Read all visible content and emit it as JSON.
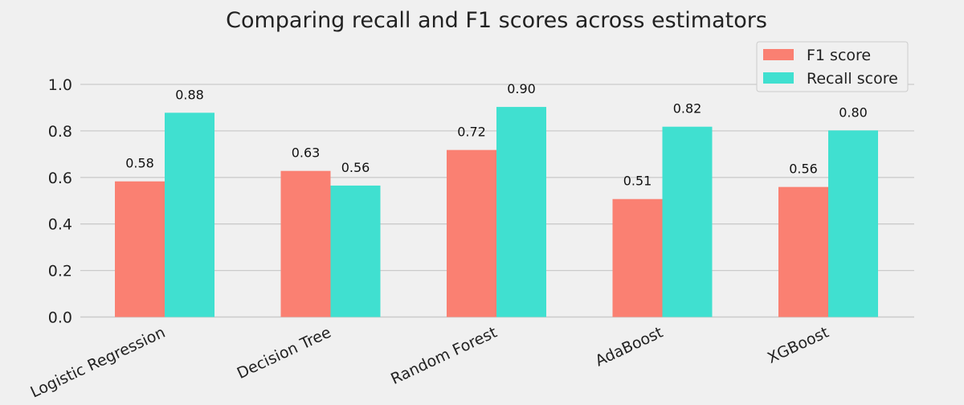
{
  "chart_data": {
    "type": "bar",
    "title": "Comparing recall and F1 scores across estimators",
    "xlabel": "",
    "ylabel": "",
    "categories": [
      "Logistic Regression",
      "Decision Tree",
      "Random Forest",
      "AdaBoost",
      "XGBoost"
    ],
    "series": [
      {
        "name": "F1 score",
        "color": "#fa8072",
        "values": [
          0.583,
          0.628,
          0.718,
          0.507,
          0.559
        ],
        "labels": [
          "0.58",
          "0.63",
          "0.72",
          "0.51",
          "0.56"
        ]
      },
      {
        "name": "Recall score",
        "color": "#40e0d0",
        "values": [
          0.878,
          0.565,
          0.903,
          0.818,
          0.802
        ],
        "labels": [
          "0.88",
          "0.56",
          "0.90",
          "0.82",
          "0.80"
        ]
      }
    ],
    "ylim": [
      0,
      1.1
    ],
    "yticks": [
      "0.0",
      "0.2",
      "0.4",
      "0.6",
      "0.8",
      "1.0"
    ],
    "ytick_values": [
      0,
      0.2,
      0.4,
      0.6,
      0.8,
      1.0
    ],
    "grid": true,
    "legend_position": "top-right"
  }
}
